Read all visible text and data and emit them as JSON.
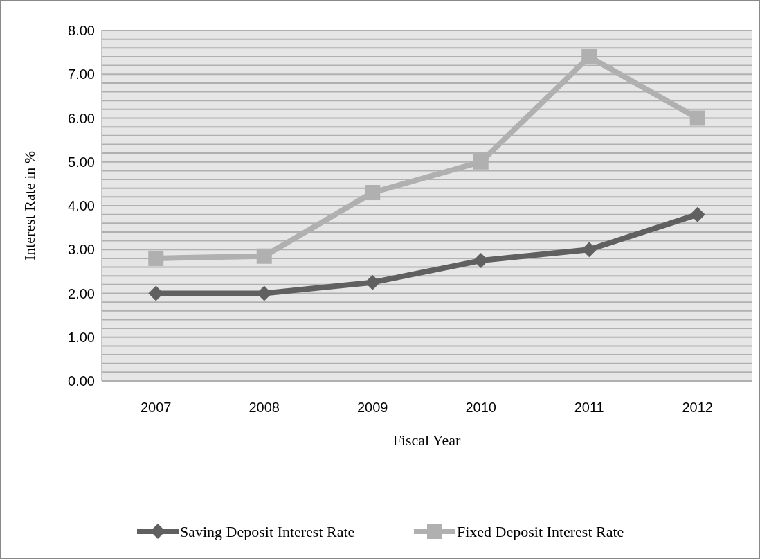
{
  "chart_data": {
    "type": "line",
    "xlabel": "Fiscal Year",
    "ylabel": "Interest Rate in %",
    "categories": [
      "2007",
      "2008",
      "2009",
      "2010",
      "2011",
      "2012"
    ],
    "series": [
      {
        "name": "Saving Deposit Interest Rate",
        "color": "#606060",
        "marker": "diamond",
        "values": [
          2.0,
          2.0,
          2.25,
          2.75,
          3.0,
          3.8
        ]
      },
      {
        "name": "Fixed Deposit Interest Rate",
        "color": "#b0b0b0",
        "marker": "square",
        "values": [
          2.8,
          2.85,
          4.3,
          5.0,
          7.4,
          6.0
        ]
      }
    ],
    "ylim": [
      0,
      8
    ],
    "yticks": [
      {
        "value": 0,
        "label": "0.00"
      },
      {
        "value": 0.2,
        "label": null
      },
      {
        "value": 0.4,
        "label": null
      },
      {
        "value": 0.6,
        "label": null
      },
      {
        "value": 0.8,
        "label": null
      },
      {
        "value": 1,
        "label": "1.00"
      },
      {
        "value": 1.2,
        "label": null
      },
      {
        "value": 1.4,
        "label": null
      },
      {
        "value": 1.6,
        "label": null
      },
      {
        "value": 1.8,
        "label": null
      },
      {
        "value": 2,
        "label": "2.00"
      },
      {
        "value": 2.2,
        "label": null
      },
      {
        "value": 2.4,
        "label": null
      },
      {
        "value": 2.6,
        "label": null
      },
      {
        "value": 2.8,
        "label": null
      },
      {
        "value": 3,
        "label": "3.00"
      },
      {
        "value": 3.2,
        "label": null
      },
      {
        "value": 3.4,
        "label": null
      },
      {
        "value": 3.6,
        "label": null
      },
      {
        "value": 3.8,
        "label": null
      },
      {
        "value": 4,
        "label": "4.00"
      },
      {
        "value": 4.2,
        "label": null
      },
      {
        "value": 4.4,
        "label": null
      },
      {
        "value": 4.6,
        "label": null
      },
      {
        "value": 4.8,
        "label": null
      },
      {
        "value": 5,
        "label": "5.00"
      },
      {
        "value": 5.2,
        "label": null
      },
      {
        "value": 5.4,
        "label": null
      },
      {
        "value": 5.6,
        "label": null
      },
      {
        "value": 5.8,
        "label": null
      },
      {
        "value": 6,
        "label": "6.00"
      },
      {
        "value": 6.2,
        "label": null
      },
      {
        "value": 6.4,
        "label": null
      },
      {
        "value": 6.6,
        "label": null
      },
      {
        "value": 6.8,
        "label": null
      },
      {
        "value": 7,
        "label": "7.00"
      },
      {
        "value": 7.2,
        "label": null
      },
      {
        "value": 7.4,
        "label": null
      },
      {
        "value": 7.6,
        "label": null
      },
      {
        "value": 7.8,
        "label": null
      },
      {
        "value": 8,
        "label": "8.00"
      }
    ],
    "grid": "y",
    "legend": "bottom",
    "line_style": "solid"
  }
}
